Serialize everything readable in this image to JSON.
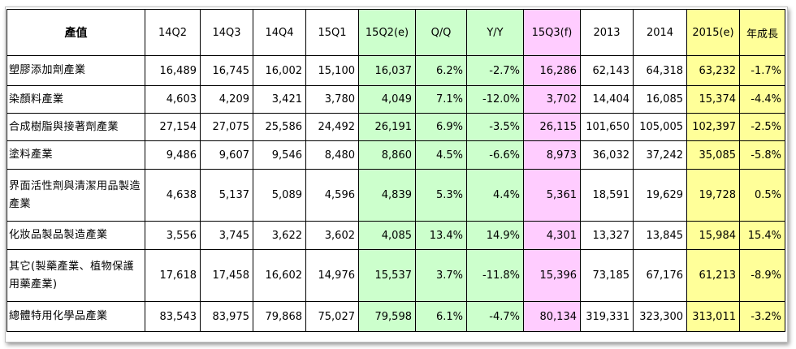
{
  "table": {
    "headers": [
      "產值",
      "14Q2",
      "14Q3",
      "14Q4",
      "15Q1",
      "15Q2(e)",
      "Q/Q",
      "Y/Y",
      "15Q3(f)",
      "2013",
      "2014",
      "2015(e)",
      "年成長"
    ],
    "rows": [
      [
        "塑膠添加劑產業",
        "16,489",
        "16,745",
        "16,002",
        "15,100",
        "16,037",
        "6.2%",
        "-2.7%",
        "16,286",
        "62,143",
        "64,318",
        "63,232",
        "-1.7%"
      ],
      [
        "染顏料產業",
        "4,603",
        "4,209",
        "3,421",
        "3,780",
        "4,049",
        "7.1%",
        "-12.0%",
        "3,702",
        "14,404",
        "16,085",
        "15,374",
        "-4.4%"
      ],
      [
        "合成樹脂與接著劑產業",
        "27,154",
        "27,075",
        "25,586",
        "24,492",
        "26,191",
        "6.9%",
        "-3.5%",
        "26,115",
        "101,650",
        "105,005",
        "102,397",
        "-2.5%"
      ],
      [
        "塗料產業",
        "9,486",
        "9,607",
        "9,546",
        "8,480",
        "8,860",
        "4.5%",
        "-6.6%",
        "8,973",
        "36,032",
        "37,242",
        "35,085",
        "-5.8%"
      ],
      [
        "界面活性劑與清潔用品製造產業",
        "4,638",
        "5,137",
        "5,089",
        "4,596",
        "4,839",
        "5.3%",
        "4.4%",
        "5,361",
        "18,591",
        "19,629",
        "19,728",
        "0.5%"
      ],
      [
        "化妝品製品製造產業",
        "3,556",
        "3,745",
        "3,622",
        "3,602",
        "4,085",
        "13.4%",
        "14.9%",
        "4,301",
        "13,327",
        "13,845",
        "15,984",
        "15.4%"
      ],
      [
        "其它(製藥產業、植物保護用藥產業)",
        "17,618",
        "17,458",
        "16,602",
        "14,976",
        "15,537",
        "3.7%",
        "-11.8%",
        "15,396",
        "73,185",
        "67,176",
        "61,213",
        "-8.9%"
      ],
      [
        "總體特用化學品產業",
        "83,543",
        "83,975",
        "79,868",
        "75,027",
        "79,598",
        "6.1%",
        "-4.7%",
        "80,134",
        "319,331",
        "323,300",
        "313,011",
        "-3.2%"
      ]
    ]
  },
  "colors": {
    "green_column": "#ccffcc",
    "pink_column": "#ffccff",
    "yellow_column": "#ffff99"
  }
}
